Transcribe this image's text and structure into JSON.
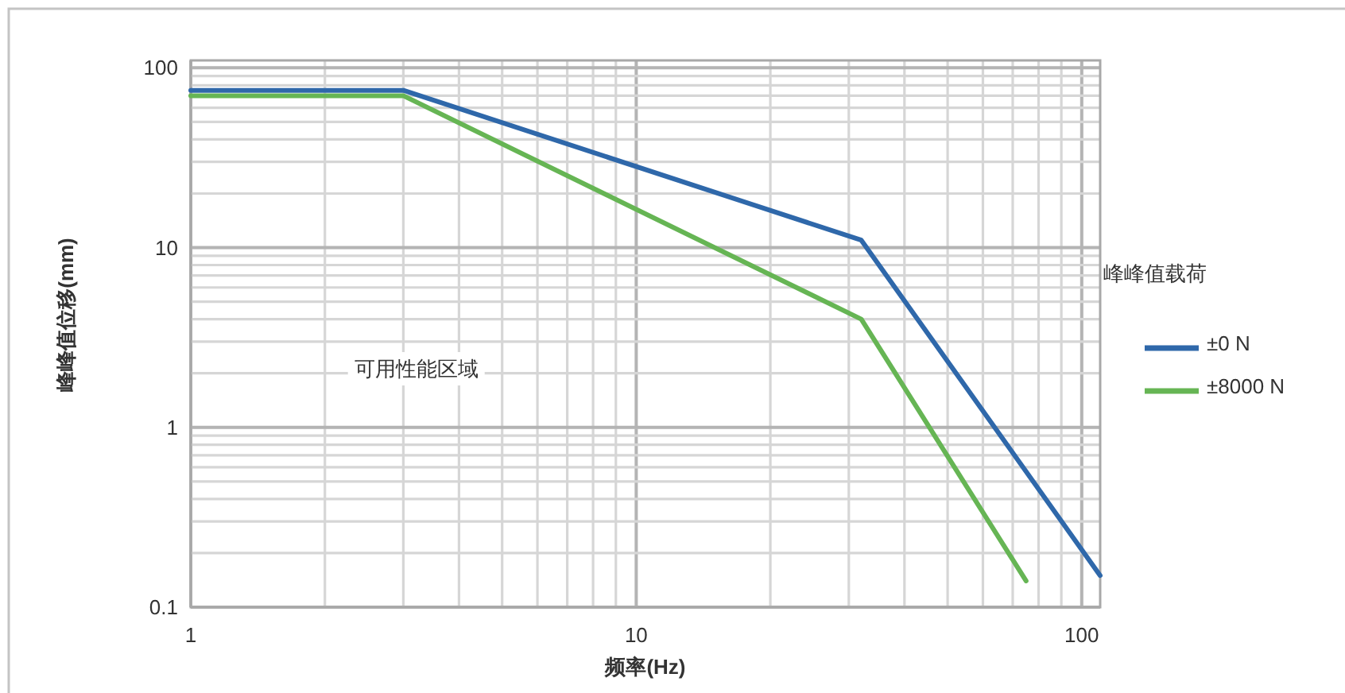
{
  "chart_data": {
    "type": "line",
    "xlabel": "频率(Hz)",
    "ylabel": "峰峰值位移(mm)",
    "legend_title": "峰峰值载荷",
    "annotations": [
      "可用性能区域"
    ],
    "log": "xy",
    "xlim": [
      1,
      110
    ],
    "ylim": [
      0.1,
      110
    ],
    "xticks": [
      1,
      10,
      100
    ],
    "yticks": [
      0.1,
      1,
      10,
      100
    ],
    "grid": true,
    "legend": "right",
    "series": [
      {
        "name": "±0 N",
        "color": "#2f68aa",
        "x": [
          1,
          3,
          32,
          110
        ],
        "values": [
          75,
          75,
          11,
          0.15
        ]
      },
      {
        "name": "±8000 N",
        "color": "#66b554",
        "x": [
          1,
          3,
          32,
          75
        ],
        "values": [
          70,
          70,
          4,
          0.14
        ]
      }
    ]
  }
}
